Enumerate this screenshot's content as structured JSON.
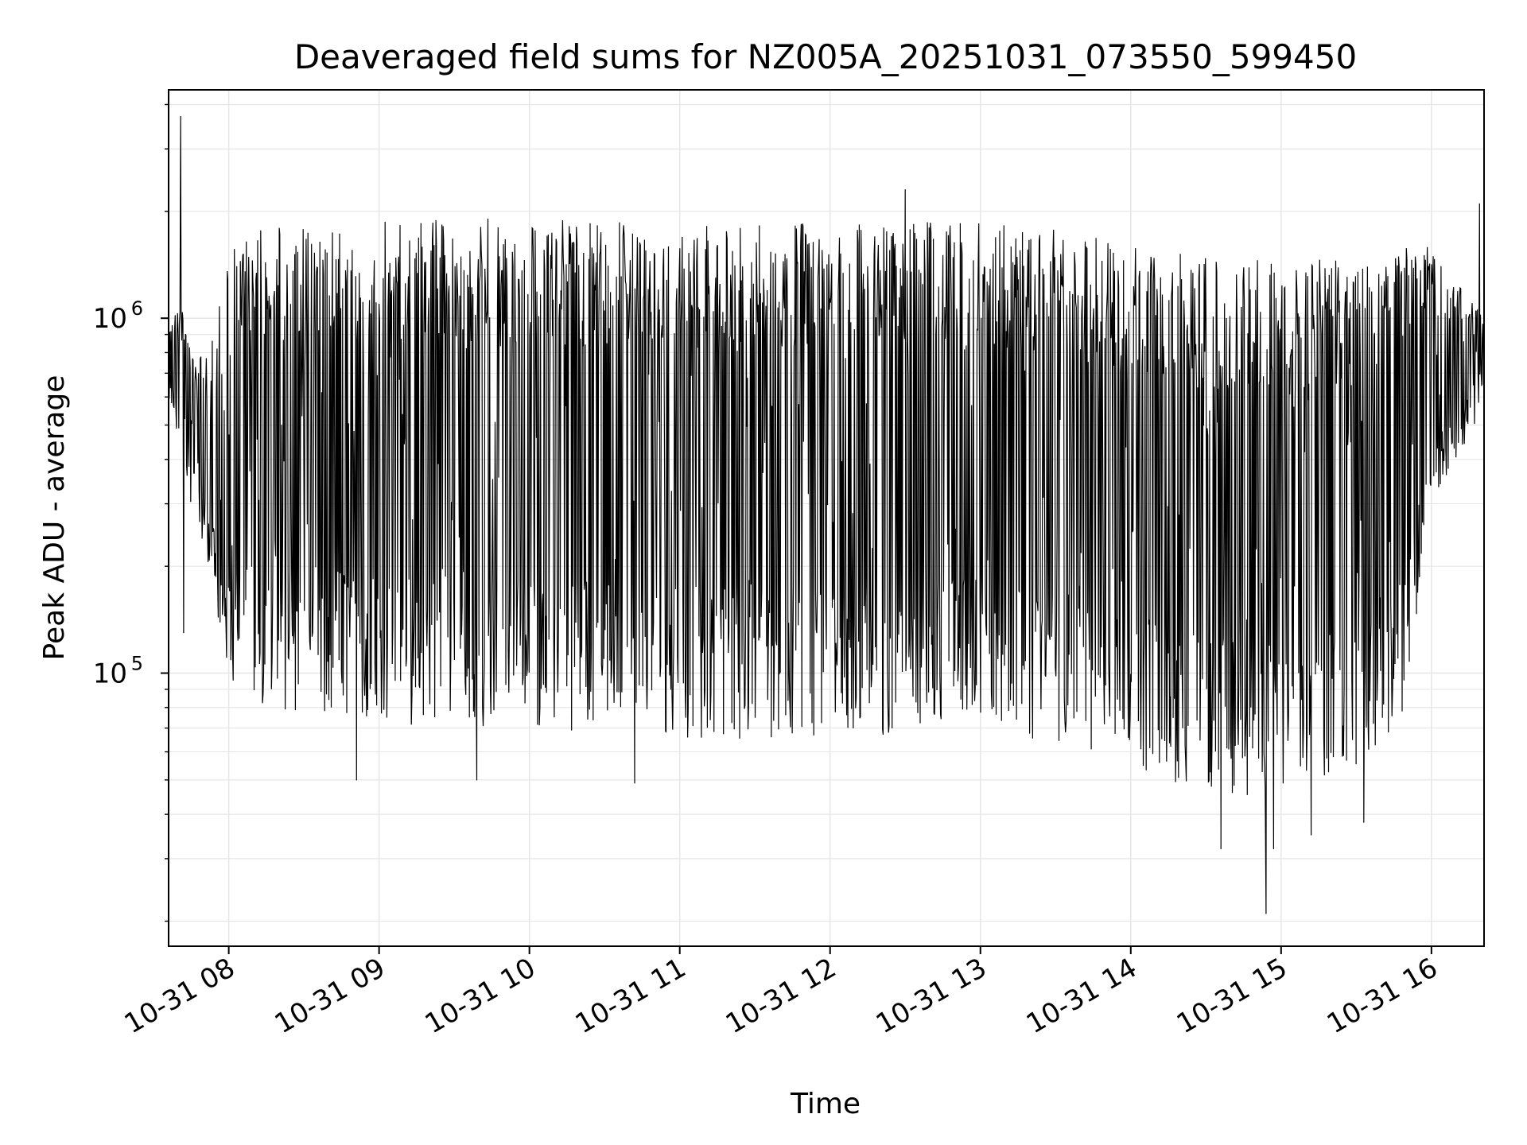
{
  "chart_data": {
    "type": "line",
    "title": "Deaveraged field sums for NZ005A_20251031_073550_599450",
    "xlabel": "Time",
    "ylabel": "Peak ADU - average",
    "yscale": "log",
    "xlim": [
      7.6,
      16.35
    ],
    "ylim": [
      17000,
      4400000
    ],
    "grid": true,
    "x_ticks": [
      {
        "value": 8,
        "label": "10-31 08"
      },
      {
        "value": 9,
        "label": "10-31 09"
      },
      {
        "value": 10,
        "label": "10-31 10"
      },
      {
        "value": 11,
        "label": "10-31 11"
      },
      {
        "value": 12,
        "label": "10-31 12"
      },
      {
        "value": 13,
        "label": "10-31 13"
      },
      {
        "value": 14,
        "label": "10-31 14"
      },
      {
        "value": 15,
        "label": "10-31 15"
      },
      {
        "value": 16,
        "label": "10-31 16"
      }
    ],
    "y_ticks": [
      {
        "value": 100000,
        "base": "10",
        "exponent": "5"
      },
      {
        "value": 1000000,
        "base": "10",
        "exponent": "6"
      }
    ],
    "series": [
      {
        "name": "Deaveraged field sum",
        "color": "#000000",
        "x_unit": "hours (10-31)",
        "envelope": [
          {
            "t": 7.6,
            "low": 600000,
            "high": 1000000
          },
          {
            "t": 7.7,
            "low": 400000,
            "high": 1100000
          },
          {
            "t": 7.78,
            "low": 250000,
            "high": 800000
          },
          {
            "t": 7.9,
            "low": 150000,
            "high": 900000
          },
          {
            "t": 8.0,
            "low": 90000,
            "high": 1600000
          },
          {
            "t": 8.2,
            "low": 80000,
            "high": 1800000
          },
          {
            "t": 8.8,
            "low": 75000,
            "high": 1850000
          },
          {
            "t": 9.3,
            "low": 70000,
            "high": 1900000
          },
          {
            "t": 10.0,
            "low": 68000,
            "high": 1950000
          },
          {
            "t": 11.0,
            "low": 65000,
            "high": 1850000
          },
          {
            "t": 12.0,
            "low": 65000,
            "high": 1900000
          },
          {
            "t": 13.0,
            "low": 70000,
            "high": 1850000
          },
          {
            "t": 13.5,
            "low": 60000,
            "high": 1800000
          },
          {
            "t": 14.0,
            "low": 55000,
            "high": 1600000
          },
          {
            "t": 14.5,
            "low": 45000,
            "high": 1500000
          },
          {
            "t": 15.0,
            "low": 45000,
            "high": 1500000
          },
          {
            "t": 15.5,
            "low": 55000,
            "high": 1500000
          },
          {
            "t": 15.8,
            "low": 70000,
            "high": 1700000
          },
          {
            "t": 16.0,
            "low": 300000,
            "high": 1600000
          },
          {
            "t": 16.35,
            "low": 550000,
            "high": 1000000
          }
        ],
        "spikes": [
          {
            "t": 7.68,
            "value": 3700000
          },
          {
            "t": 7.7,
            "value": 130000
          },
          {
            "t": 8.85,
            "value": 50000
          },
          {
            "t": 9.65,
            "value": 50000
          },
          {
            "t": 10.7,
            "value": 49000
          },
          {
            "t": 12.5,
            "value": 2300000
          },
          {
            "t": 14.6,
            "value": 32000
          },
          {
            "t": 14.9,
            "value": 21000
          },
          {
            "t": 14.95,
            "value": 32000
          },
          {
            "t": 15.2,
            "value": 35000
          },
          {
            "t": 15.55,
            "value": 38000
          },
          {
            "t": 16.32,
            "value": 2100000
          }
        ]
      }
    ]
  }
}
